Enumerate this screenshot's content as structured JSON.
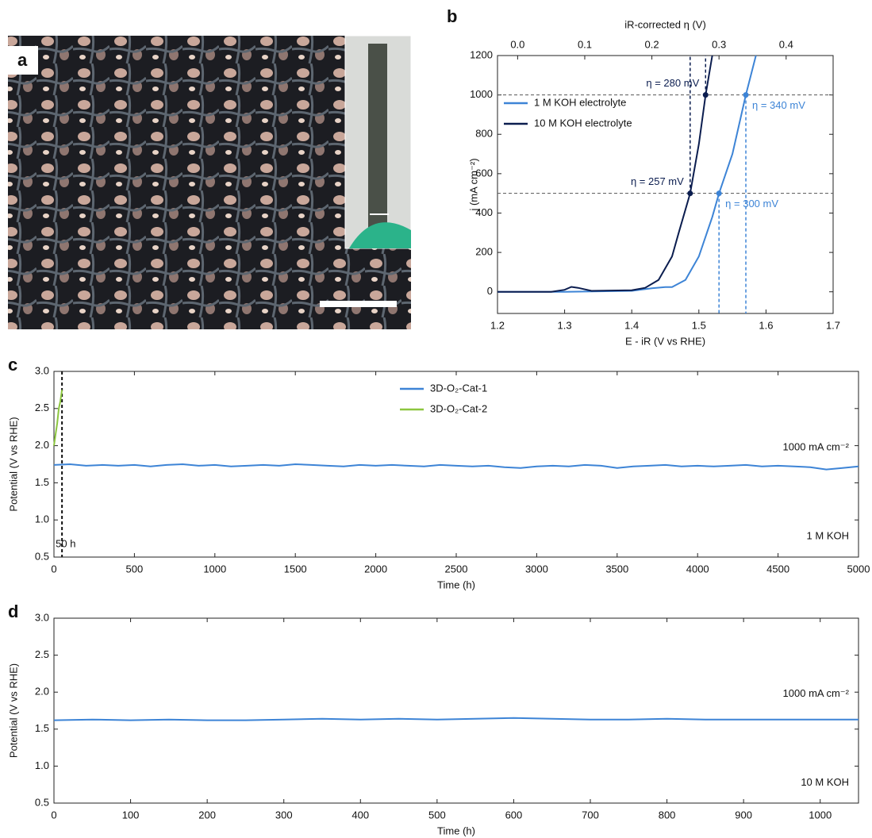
{
  "image_panel": {
    "label": "a"
  },
  "chart_data": [
    {
      "type": "line",
      "panel_label": "b",
      "x_label": "E - iR (V vs RHE)",
      "y_label": "j (mA cm⁻²)",
      "x2_label": "iR-corrected η (V)",
      "xlim": [
        1.2,
        1.7
      ],
      "xticks": [
        1.2,
        1.3,
        1.4,
        1.5,
        1.6,
        1.7
      ],
      "ylim": [
        -110,
        1200
      ],
      "yticks": [
        0,
        200,
        400,
        600,
        800,
        1000,
        1200
      ],
      "x2lim": [
        -0.03,
        0.47
      ],
      "x2ticks": [
        {
          "value": 0,
          "label": "0.0"
        },
        0.1,
        0.2,
        0.3,
        0.4
      ],
      "legend": "upper-left",
      "series": [
        {
          "name": "1 M KOH electrolyte",
          "color": "#3d84d6",
          "x": [
            1.2,
            1.3,
            1.4,
            1.43,
            1.45,
            1.46,
            1.48,
            1.5,
            1.52,
            1.53,
            1.55,
            1.57,
            1.585
          ],
          "values": [
            0,
            0,
            5,
            18,
            24,
            24,
            60,
            180,
            380,
            500,
            700,
            1000,
            1200
          ]
        },
        {
          "name": "10 M KOH electrolyte",
          "color": "#0b1d4f",
          "x": [
            1.2,
            1.28,
            1.3,
            1.31,
            1.32,
            1.34,
            1.4,
            1.42,
            1.44,
            1.46,
            1.47,
            1.487,
            1.5,
            1.51,
            1.52
          ],
          "values": [
            0,
            0,
            10,
            25,
            20,
            5,
            8,
            20,
            60,
            180,
            300,
            500,
            750,
            1000,
            1200
          ]
        }
      ],
      "hlines": [
        500,
        1000
      ],
      "markers": [
        {
          "label": "η = 280 mV",
          "x": 1.51,
          "y": 1000,
          "series": 1
        },
        {
          "label": "η = 257 mV",
          "x": 1.487,
          "y": 500,
          "series": 1
        },
        {
          "label": "η = 340 mV",
          "x": 1.57,
          "y": 1000,
          "series": 0
        },
        {
          "label": "η = 300 mV",
          "x": 1.53,
          "y": 500,
          "series": 0
        }
      ]
    },
    {
      "type": "line",
      "panel_label": "c",
      "x_label": "Time (h)",
      "y_label": "Potential (V vs RHE)",
      "xlim": [
        0,
        5000
      ],
      "xticks": [
        0,
        500,
        1000,
        1500,
        2000,
        2500,
        3000,
        3500,
        4000,
        4500,
        5000
      ],
      "ylim": [
        0.5,
        3.0
      ],
      "yticks": [
        0.5,
        {
          "value": 1,
          "label": "1.0"
        },
        1.5,
        {
          "value": 2,
          "label": "2.0"
        },
        2.5,
        {
          "value": 3,
          "label": "3.0"
        }
      ],
      "legend": "upper-center",
      "series": [
        {
          "name": "3D-O₂-Cat-1",
          "color": "#3d84d6",
          "x": [
            0,
            100,
            200,
            300,
            400,
            500,
            600,
            700,
            800,
            900,
            1000,
            1100,
            1200,
            1300,
            1400,
            1500,
            1600,
            1700,
            1800,
            1900,
            2000,
            2100,
            2200,
            2300,
            2400,
            2500,
            2600,
            2700,
            2800,
            2900,
            3000,
            3100,
            3200,
            3300,
            3400,
            3500,
            3600,
            3700,
            3800,
            3900,
            4000,
            4100,
            4200,
            4300,
            4400,
            4500,
            4600,
            4700,
            4800,
            4900,
            5000
          ],
          "values": [
            1.74,
            1.75,
            1.73,
            1.74,
            1.73,
            1.74,
            1.72,
            1.74,
            1.75,
            1.73,
            1.74,
            1.72,
            1.73,
            1.74,
            1.73,
            1.75,
            1.74,
            1.73,
            1.72,
            1.74,
            1.73,
            1.74,
            1.73,
            1.72,
            1.74,
            1.73,
            1.72,
            1.73,
            1.71,
            1.7,
            1.72,
            1.73,
            1.72,
            1.74,
            1.73,
            1.7,
            1.72,
            1.73,
            1.74,
            1.72,
            1.73,
            1.72,
            1.73,
            1.74,
            1.72,
            1.73,
            1.72,
            1.71,
            1.68,
            1.7,
            1.72
          ]
        },
        {
          "name": "3D-O₂-Cat-2",
          "color": "#8cc63f",
          "x": [
            0,
            10,
            20,
            30,
            40,
            50
          ],
          "values": [
            2.0,
            2.15,
            2.3,
            2.5,
            2.6,
            2.75
          ]
        }
      ],
      "vlines": [
        {
          "x": 50,
          "label": "50 h"
        }
      ],
      "annotations": [
        "1000 mA cm⁻²",
        "1 M KOH"
      ]
    },
    {
      "type": "line",
      "panel_label": "d",
      "x_label": "Time (h)",
      "y_label": "Potential (V vs RHE)",
      "xlim": [
        0,
        1050
      ],
      "xticks": [
        0,
        100,
        200,
        300,
        400,
        500,
        600,
        700,
        800,
        900,
        1000
      ],
      "ylim": [
        0.5,
        3.0
      ],
      "yticks": [
        0.5,
        {
          "value": 1,
          "label": "1.0"
        },
        1.5,
        {
          "value": 2,
          "label": "2.0"
        },
        2.5,
        {
          "value": 3,
          "label": "3.0"
        }
      ],
      "series": [
        {
          "color": "#3d84d6",
          "x": [
            0,
            50,
            100,
            150,
            200,
            250,
            300,
            350,
            400,
            450,
            500,
            550,
            600,
            650,
            700,
            750,
            800,
            850,
            900,
            950,
            1000,
            1050
          ],
          "values": [
            1.62,
            1.63,
            1.62,
            1.63,
            1.62,
            1.62,
            1.63,
            1.64,
            1.63,
            1.64,
            1.63,
            1.64,
            1.65,
            1.64,
            1.63,
            1.63,
            1.64,
            1.63,
            1.63,
            1.63,
            1.63,
            1.63
          ]
        }
      ],
      "annotations": [
        "1000 mA cm⁻²",
        "10 M KOH"
      ]
    }
  ]
}
